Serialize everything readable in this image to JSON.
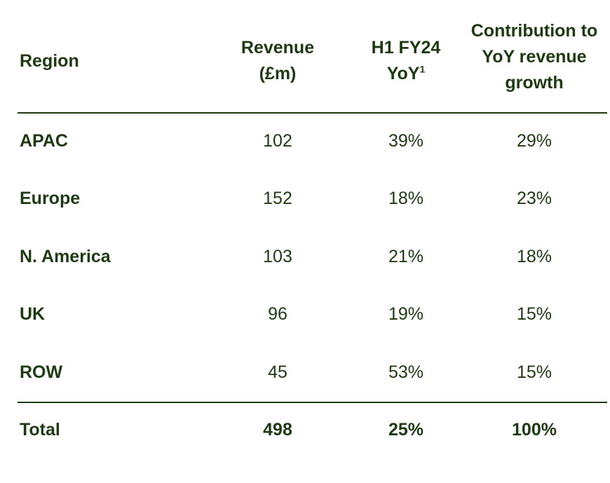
{
  "chart_data": {
    "type": "table",
    "columns": {
      "region": "Region",
      "revenue": "Revenue (£m)",
      "yoy": "H1 FY24 YoY",
      "yoy_footnote": "1",
      "contribution": "Contribution to YoY revenue growth"
    },
    "rows": [
      {
        "region": "APAC",
        "revenue": "102",
        "yoy": "39%",
        "contribution": "29%"
      },
      {
        "region": "Europe",
        "revenue": "152",
        "yoy": "18%",
        "contribution": "23%"
      },
      {
        "region": "N. America",
        "revenue": "103",
        "yoy": "21%",
        "contribution": "18%"
      },
      {
        "region": "UK",
        "revenue": "96",
        "yoy": "19%",
        "contribution": "15%"
      },
      {
        "region": "ROW",
        "revenue": "45",
        "yoy": "53%",
        "contribution": "15%"
      }
    ],
    "total": {
      "region": "Total",
      "revenue": "498",
      "yoy": "25%",
      "contribution": "100%"
    }
  },
  "colors": {
    "text": "#1d3a12",
    "background": "#ffffff"
  }
}
